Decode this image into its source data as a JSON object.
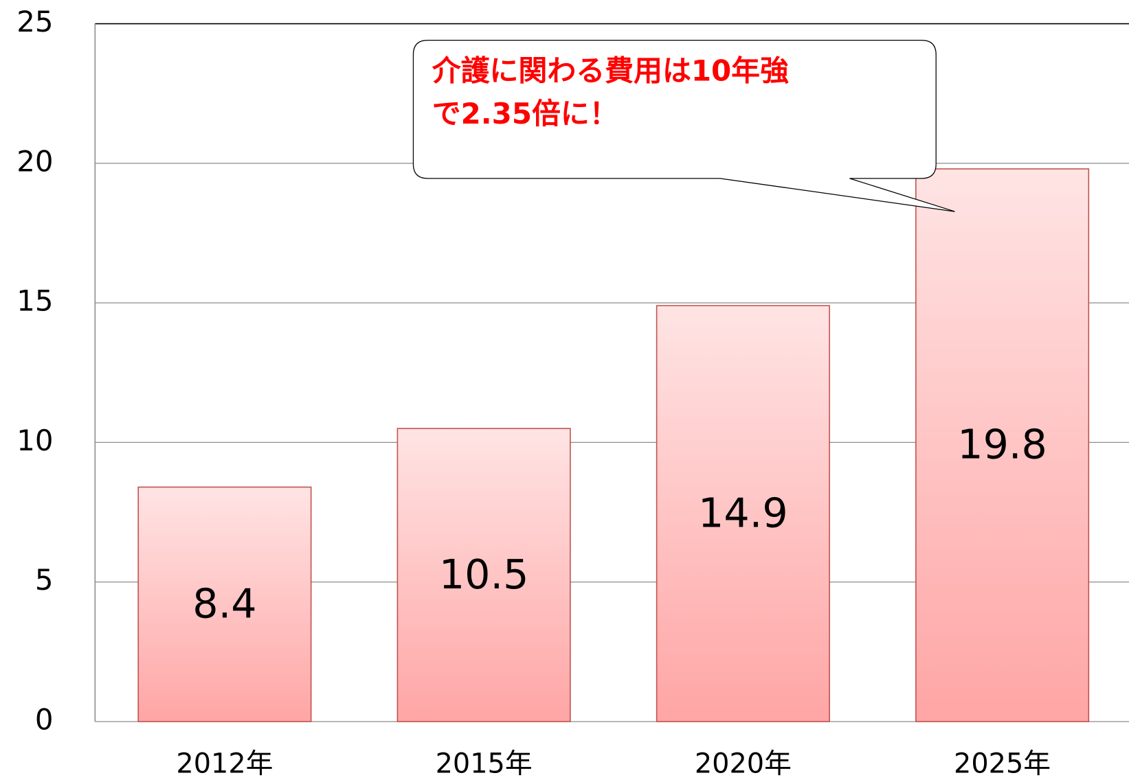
{
  "chart_data": {
    "type": "bar",
    "categories": [
      "2012年",
      "2015年",
      "2020年",
      "2025年"
    ],
    "values": [
      8.4,
      10.5,
      14.9,
      19.8
    ],
    "color": "#ffa5a5",
    "ylim": [
      0,
      25
    ],
    "yticks": [
      0,
      5,
      10,
      15,
      20,
      25
    ],
    "grid": true,
    "annotation": [
      "介護に関わる費用は10年強",
      "で2.35倍に！"
    ]
  }
}
